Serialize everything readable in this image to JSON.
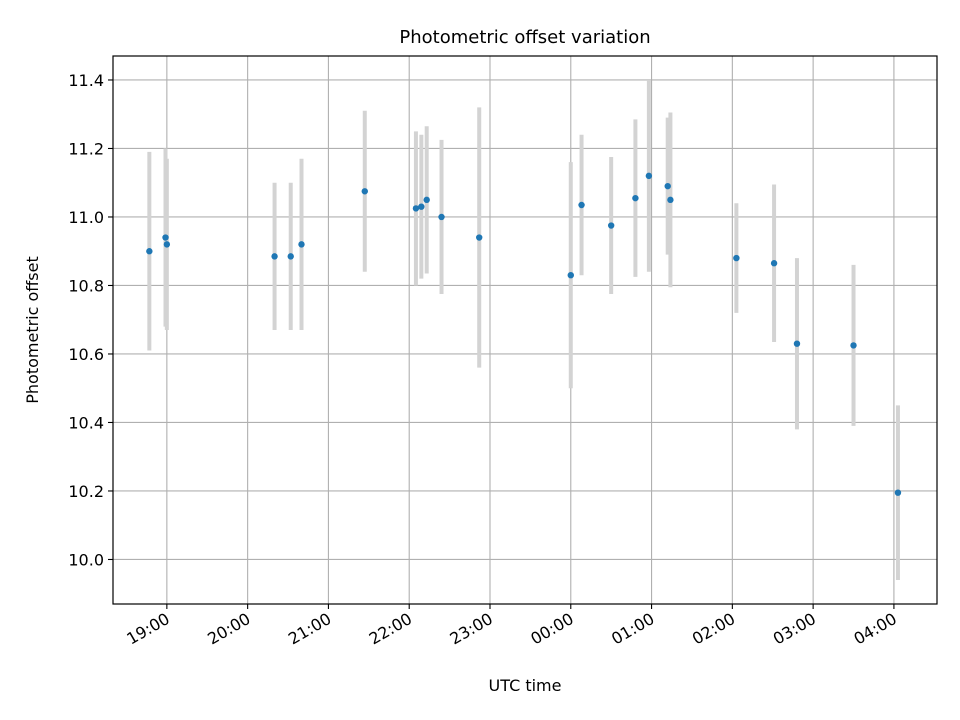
{
  "chart_data": {
    "type": "scatter",
    "title": "Photometric offset variation",
    "xlabel": "UTC time",
    "ylabel": "Photometric offset",
    "x_axis_type": "time",
    "xlim": [
      "18:20",
      "04:32"
    ],
    "x_ticks": [
      "19:00",
      "20:00",
      "21:00",
      "22:00",
      "23:00",
      "00:00",
      "01:00",
      "02:00",
      "03:00",
      "04:00"
    ],
    "ylim": [
      9.87,
      11.47
    ],
    "y_ticks": [
      "10.0",
      "10.2",
      "10.4",
      "10.6",
      "10.8",
      "11.0",
      "11.2",
      "11.4"
    ],
    "grid": true,
    "colors": {
      "point": "#1f77b4",
      "errorbar": "#d3d3d3",
      "grid": "#b0b0b0"
    },
    "series": [
      {
        "points": [
          {
            "x": "18:47",
            "y": 10.9,
            "err": 0.29
          },
          {
            "x": "18:59",
            "y": 10.94,
            "err": 0.26
          },
          {
            "x": "19:00",
            "y": 10.92,
            "err": 0.25
          },
          {
            "x": "20:20",
            "y": 10.885,
            "err": 0.215
          },
          {
            "x": "20:32",
            "y": 10.885,
            "err": 0.215
          },
          {
            "x": "20:40",
            "y": 10.92,
            "err": 0.25
          },
          {
            "x": "21:27",
            "y": 11.075,
            "err": 0.235
          },
          {
            "x": "22:05",
            "y": 11.025,
            "err": 0.225
          },
          {
            "x": "22:09",
            "y": 11.03,
            "err": 0.21
          },
          {
            "x": "22:13",
            "y": 11.05,
            "err": 0.215
          },
          {
            "x": "22:24",
            "y": 11.0,
            "err": 0.225
          },
          {
            "x": "22:52",
            "y": 10.94,
            "err": 0.38
          },
          {
            "x": "00:00",
            "y": 10.83,
            "err": 0.33
          },
          {
            "x": "00:08",
            "y": 11.035,
            "err": 0.205
          },
          {
            "x": "00:30",
            "y": 10.975,
            "err": 0.2
          },
          {
            "x": "00:48",
            "y": 11.055,
            "err": 0.23
          },
          {
            "x": "00:58",
            "y": 11.12,
            "err": 0.28
          },
          {
            "x": "01:12",
            "y": 11.09,
            "err": 0.2
          },
          {
            "x": "01:14",
            "y": 11.05,
            "err": 0.255
          },
          {
            "x": "02:03",
            "y": 10.88,
            "err": 0.16
          },
          {
            "x": "02:31",
            "y": 10.865,
            "err": 0.23
          },
          {
            "x": "02:48",
            "y": 10.63,
            "err": 0.25
          },
          {
            "x": "03:30",
            "y": 10.625,
            "err": 0.235
          },
          {
            "x": "04:03",
            "y": 10.195,
            "err": 0.255
          }
        ]
      }
    ]
  }
}
